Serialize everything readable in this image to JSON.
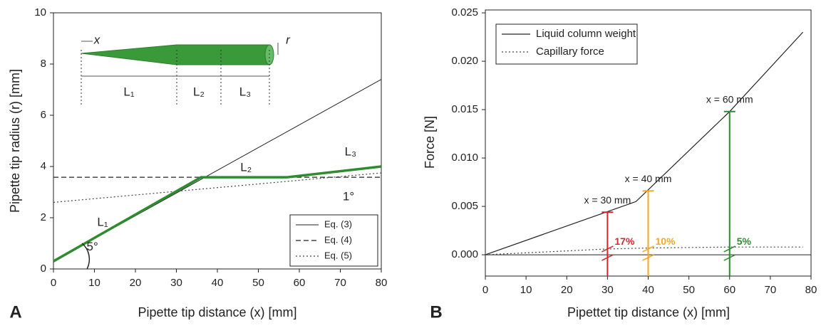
{
  "chart_data": [
    {
      "type": "line",
      "panel": "A",
      "x_label": "Pipette tip distance (x) [mm]",
      "y_label": "Pipette tip radius (r) [mm]",
      "xlim": [
        0,
        80
      ],
      "ylim": [
        0,
        10
      ],
      "xticks": [
        0,
        10,
        20,
        30,
        40,
        50,
        60,
        70,
        80
      ],
      "yticks": [
        0,
        2,
        4,
        6,
        8,
        10
      ],
      "legend": "lower right",
      "series": [
        {
          "name": "Eq. (3)",
          "color": "#222222",
          "line_style": "solid",
          "line_width": 1,
          "x": [
            0,
            80
          ],
          "values": [
            0.3,
            7.4
          ]
        },
        {
          "name": "Eq. (4)",
          "color": "#222222",
          "line_style": "dashed",
          "line_width": 1.2,
          "x": [
            0,
            80
          ],
          "values": [
            3.58,
            3.58
          ]
        },
        {
          "name": "Eq. (5)",
          "color": "#444444",
          "line_style": "dotted",
          "line_width": 1.2,
          "x": [
            0,
            80
          ],
          "values": [
            2.6,
            3.75
          ]
        },
        {
          "color": "#2e8b2e",
          "line_style": "solid",
          "line_width": 3.5,
          "x": [
            0,
            36,
            57,
            80
          ],
          "values": [
            0.3,
            3.58,
            3.58,
            4.0
          ]
        }
      ],
      "annotations": [
        "L₁",
        "L₂",
        "L₃",
        "5°",
        "1°"
      ],
      "inset_labels": [
        "x",
        "r",
        "L₁",
        "L₂",
        "L₃"
      ]
    },
    {
      "type": "line",
      "panel": "B",
      "x_label": "Pipettet tip distance (x) [mm]",
      "y_label": "Force [N]",
      "xlim": [
        0,
        80
      ],
      "ylim": [
        -0.0022,
        0.0253
      ],
      "xticks": [
        0,
        10,
        20,
        30,
        40,
        50,
        60,
        70,
        80
      ],
      "yticks": [
        {
          "value": 0,
          "label": "0.000"
        },
        {
          "value": 0.005,
          "label": "0.005"
        },
        {
          "value": 0.01,
          "label": "0.010"
        },
        {
          "value": 0.015,
          "label": "0.015"
        },
        {
          "value": 0.02,
          "label": "0.020"
        },
        {
          "value": 0.025,
          "label": "0.025"
        }
      ],
      "legend": "upper left",
      "series": [
        {
          "name": "Liquid column weight",
          "color": "#222222",
          "line_style": "solid",
          "line_width": 1.2,
          "x": [
            0,
            37,
            60,
            78
          ],
          "values": [
            0,
            0.0055,
            0.0148,
            0.023
          ]
        },
        {
          "name": "Capillary force",
          "color": "#444444",
          "line_style": "dotted",
          "line_width": 1.2,
          "x": [
            0,
            30,
            40,
            60,
            78
          ],
          "values": [
            0,
            0.0006,
            0.0007,
            0.0008,
            0.0008
          ]
        }
      ],
      "markers": [
        {
          "x": 30,
          "value": 0.0044,
          "color": "#d9262b",
          "label": "x = 30 mm",
          "percent": "17%"
        },
        {
          "x": 40,
          "value": 0.0066,
          "color": "#f5a623",
          "label": "x = 40 mm",
          "percent": "10%"
        },
        {
          "x": 60,
          "value": 0.0148,
          "color": "#2e8b2e",
          "label": "x = 60 mm",
          "percent": "5%"
        }
      ]
    }
  ]
}
